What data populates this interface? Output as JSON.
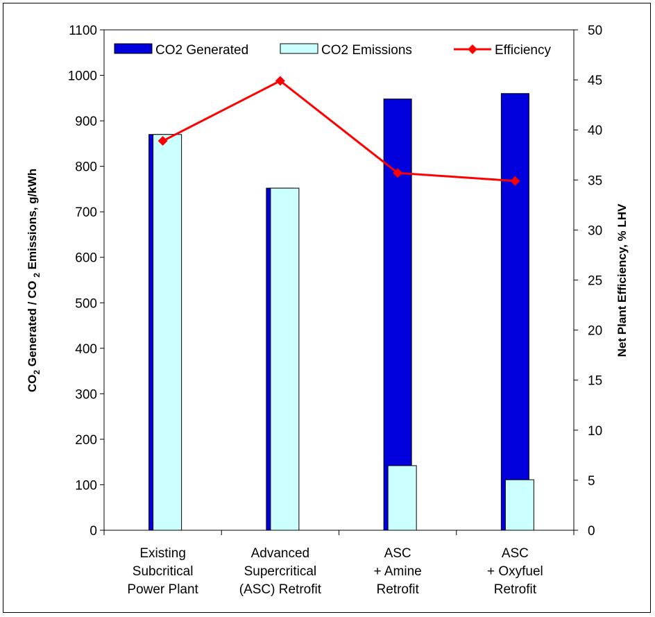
{
  "chart_data": {
    "type": "bar",
    "categories": [
      [
        "Existing",
        "Subcritical",
        "Power Plant"
      ],
      [
        "Advanced",
        "Supercritical",
        "(ASC) Retrofit"
      ],
      [
        "ASC",
        "+ Amine",
        "Retrofit"
      ],
      [
        "ASC",
        "+ Oxyfuel",
        "Retrofit"
      ]
    ],
    "series": [
      {
        "name": "CO2 Generated",
        "type": "bar",
        "axis": "left",
        "color": "#0000dd",
        "values": [
          870,
          752,
          948,
          960
        ]
      },
      {
        "name": "CO2 Emissions",
        "type": "bar",
        "axis": "left",
        "color": "#ccffff",
        "values": [
          870,
          752,
          142,
          111
        ]
      },
      {
        "name": "Efficiency",
        "type": "line",
        "axis": "right",
        "color": "#ff0000",
        "values": [
          38.9,
          44.9,
          35.7,
          34.9
        ]
      }
    ],
    "ylabel": {
      "left_parts": [
        "CO",
        "2",
        " Generated / CO ",
        "2",
        " Emissions, g/kWh"
      ]
    },
    "y2label": "Net Plant Efficiency, % LHV",
    "ylim": [
      0,
      1100
    ],
    "y2lim": [
      0,
      50
    ],
    "yticks": [
      "0",
      "100",
      "200",
      "300",
      "400",
      "500",
      "600",
      "700",
      "800",
      "900",
      "1000",
      "1100"
    ],
    "y2ticks": [
      "0",
      "5",
      "10",
      "15",
      "20",
      "25",
      "30",
      "35",
      "40",
      "45",
      "50"
    ],
    "legend_position": "top"
  }
}
